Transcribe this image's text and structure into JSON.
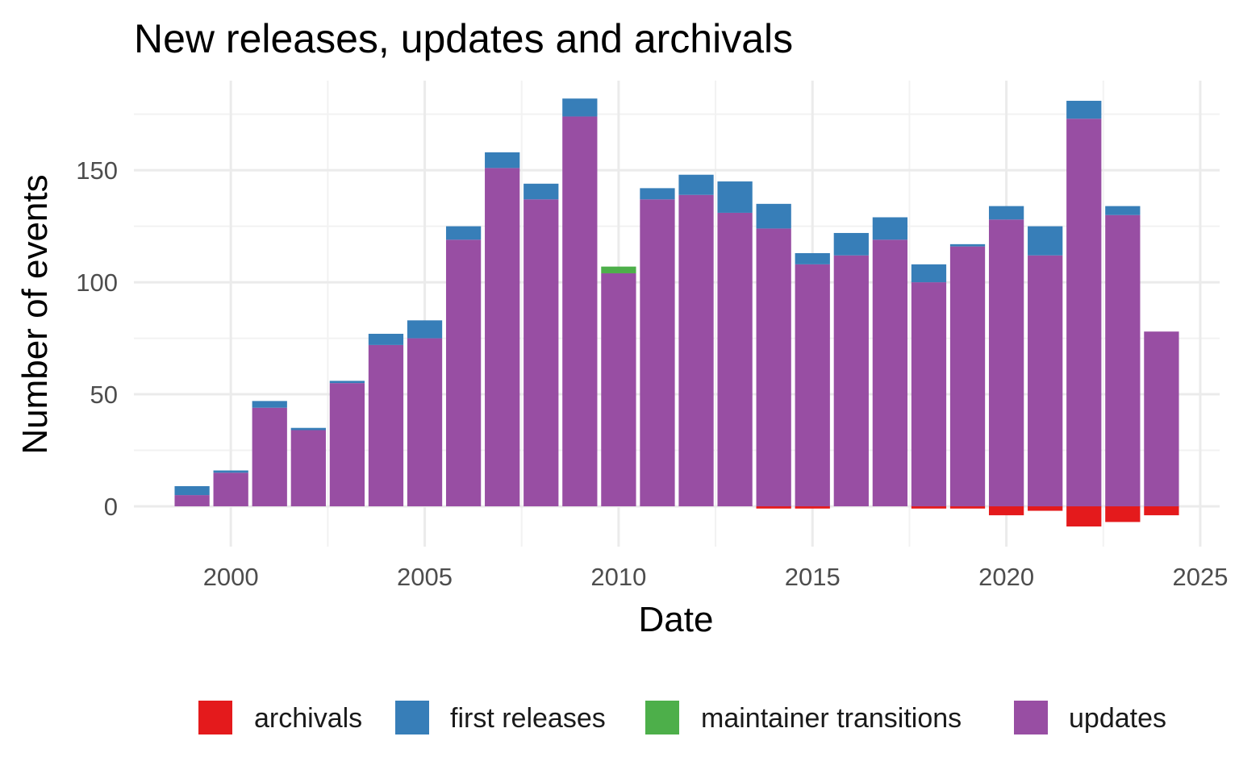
{
  "chart_data": {
    "type": "bar",
    "stacked": true,
    "title": "New releases, updates and archivals",
    "xlabel": "Date",
    "ylabel": "Number of events",
    "xlim": [
      1997.5,
      2025.5
    ],
    "ylim": [
      -18,
      190
    ],
    "x_ticks": [
      2000,
      2005,
      2010,
      2015,
      2020,
      2025
    ],
    "y_ticks": [
      0,
      50,
      100,
      150
    ],
    "grid": true,
    "legend_position": "bottom",
    "x": [
      1999,
      2000,
      2001,
      2002,
      2003,
      2004,
      2005,
      2006,
      2007,
      2008,
      2009,
      2010,
      2011,
      2012,
      2013,
      2014,
      2015,
      2016,
      2017,
      2018,
      2019,
      2020,
      2021,
      2022,
      2023,
      2024
    ],
    "series": [
      {
        "name": "archivals",
        "color": "#e41a1c",
        "values": [
          0,
          0,
          0,
          0,
          0,
          0,
          0,
          0,
          0,
          0,
          0,
          0,
          0,
          0,
          0,
          -1,
          -1,
          0,
          0,
          -1,
          -1,
          -4,
          -2,
          -9,
          -7,
          -4
        ]
      },
      {
        "name": "first releases",
        "color": "#377eb8",
        "values": [
          4,
          1,
          3,
          1,
          1,
          5,
          8,
          6,
          7,
          7,
          8,
          0,
          5,
          9,
          14,
          11,
          5,
          10,
          10,
          8,
          1,
          6,
          13,
          8,
          4,
          0
        ]
      },
      {
        "name": "maintainer transitions",
        "color": "#4daf4a",
        "values": [
          0,
          0,
          0,
          0,
          0,
          0,
          0,
          0,
          0,
          0,
          0,
          3,
          0,
          0,
          0,
          0,
          0,
          0,
          0,
          0,
          0,
          0,
          0,
          0,
          0,
          0
        ]
      },
      {
        "name": "updates",
        "color": "#984ea3",
        "values": [
          5,
          15,
          44,
          34,
          55,
          72,
          75,
          119,
          151,
          137,
          174,
          104,
          137,
          139,
          131,
          124,
          108,
          112,
          119,
          100,
          116,
          128,
          112,
          173,
          130,
          78
        ]
      }
    ]
  }
}
